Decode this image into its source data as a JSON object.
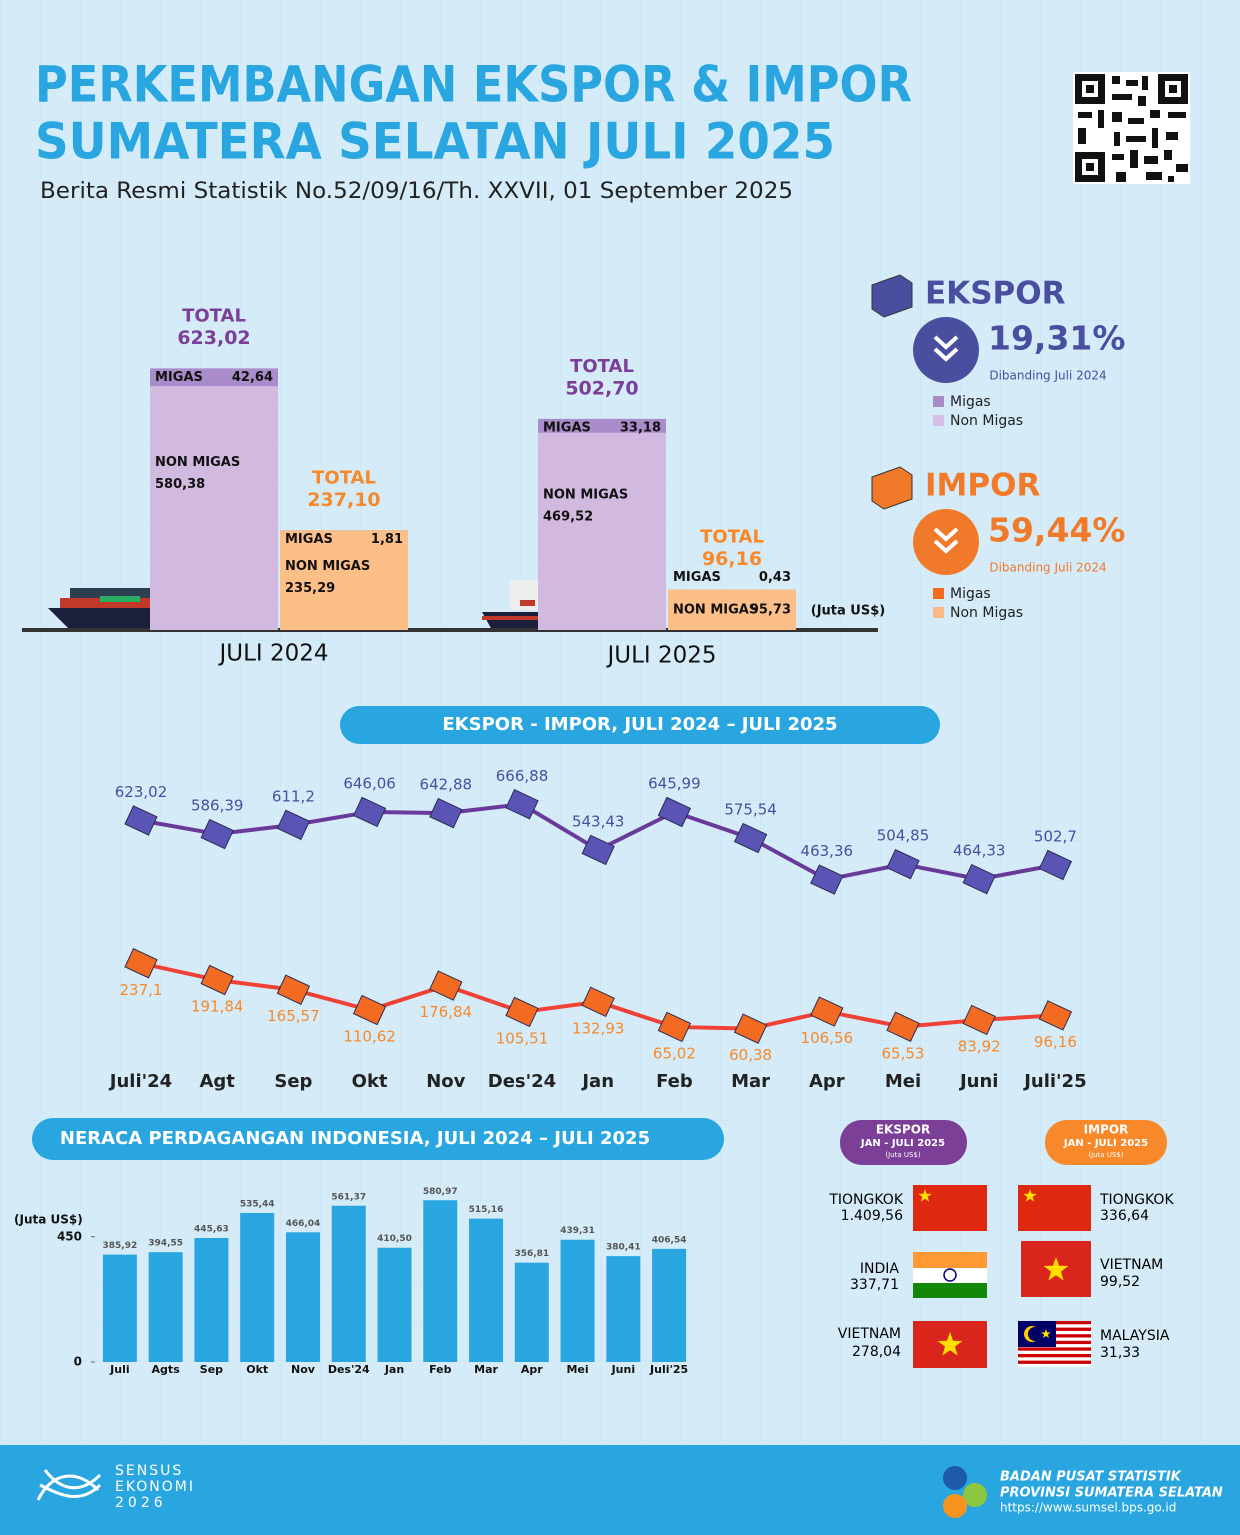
{
  "header": {
    "title": [
      "PERKEMBANGAN EKSPOR & IMPOR",
      "SUMATERA SELATAN JULI 2025"
    ],
    "subtitle": "Berita Resmi Statistik No.52/09/16/Th. XXVII, 01 September 2025"
  },
  "summary": [
    {
      "title": "EKSPOR",
      "change": "19,31%",
      "note": "Dibanding Juli 2024",
      "color": "#4a4e9e",
      "legend": [
        {
          "label": "Migas",
          "color": "#a78bc4"
        },
        {
          "label": "Non Migas",
          "color": "#d4bde6"
        }
      ]
    },
    {
      "title": "IMPOR",
      "change": "59,44%",
      "note": "Dibanding Juli 2024",
      "color": "#f07a2a",
      "legend": [
        {
          "label": "Migas",
          "color": "#f26b21"
        },
        {
          "label": "Non Migas",
          "color": "#fbb985"
        }
      ]
    }
  ],
  "chart_data": [
    {
      "type": "stacked_bar",
      "unit": "(Juta US$)",
      "categories": [
        "JULI 2024",
        "JULI 2025"
      ],
      "total_label": "TOTAL",
      "ylim": [
        0,
        700
      ],
      "groups": [
        {
          "color": "#7b3f98",
          "totals": [
            623.02,
            502.7
          ],
          "total_labels": [
            "623,02",
            "502,70"
          ],
          "series": [
            {
              "name": "MIGAS",
              "color": "#a98cc9",
              "values": [
                42.64,
                33.18
              ],
              "value_labels": [
                "42,64",
                "33,18"
              ]
            },
            {
              "name": "NON MIGAS",
              "color": "#d2b9e0",
              "values": [
                580.38,
                469.52
              ],
              "value_labels": [
                "580,38",
                "469,52"
              ]
            }
          ]
        },
        {
          "color": "#f7892a",
          "totals": [
            237.1,
            96.16
          ],
          "total_labels": [
            "237,10",
            "96,16"
          ],
          "series": [
            {
              "name": "MIGAS",
              "color": "#f9a461",
              "values": [
                1.81,
                0.43
              ],
              "value_labels": [
                "1,81",
                "0,43"
              ]
            },
            {
              "name": "NON MIGAS",
              "color": "#fdbf88",
              "values": [
                235.29,
                95.73
              ],
              "value_labels": [
                "235,29",
                "95,73"
              ]
            }
          ]
        }
      ]
    },
    {
      "type": "line",
      "title": "EKSPOR - IMPOR, JULI 2024 – JULI 2025",
      "categories": [
        "Juli'24",
        "Agt",
        "Sep",
        "Okt",
        "Nov",
        "Des'24",
        "Jan",
        "Feb",
        "Mar",
        "Apr",
        "Mei",
        "Juni",
        "Juli'25"
      ],
      "ylim": [
        0,
        700
      ],
      "series": [
        {
          "color": "#6a3a9a",
          "marker_color": "#5a55b4",
          "label_color": "#4a4e9e",
          "label_position": "above",
          "values": [
            623.02,
            586.39,
            611.2,
            646.06,
            642.88,
            666.88,
            543.43,
            645.99,
            575.54,
            463.36,
            504.85,
            464.33,
            502.7
          ],
          "value_labels": [
            "623,02",
            "586,39",
            "611,2",
            "646,06",
            "642,88",
            "666,88",
            "543,43",
            "645,99",
            "575,54",
            "463,36",
            "504,85",
            "464,33",
            "502,7"
          ]
        },
        {
          "color": "#ef4136",
          "marker_color": "#f26b21",
          "label_color": "#f7892a",
          "label_position": "below",
          "values": [
            237.1,
            191.84,
            165.57,
            110.62,
            176.84,
            105.51,
            132.93,
            65.02,
            60.38,
            106.56,
            65.53,
            83.92,
            96.16
          ],
          "value_labels": [
            "237,1",
            "191,84",
            "165,57",
            "110,62",
            "176,84",
            "105,51",
            "132,93",
            "65,02",
            "60,38",
            "106,56",
            "65,53",
            "83,92",
            "96,16"
          ]
        }
      ]
    },
    {
      "type": "bar",
      "title": "NERACA PERDAGANGAN INDONESIA, JULI 2024 – JULI 2025",
      "y_label": "(Juta US$)",
      "categories": [
        "Juli",
        "Agts",
        "Sep",
        "Okt",
        "Nov",
        "Des'24",
        "Jan",
        "Feb",
        "Mar",
        "Apr",
        "Mei",
        "Juni",
        "Juli'25"
      ],
      "values": [
        385.92,
        394.55,
        445.63,
        535.44,
        466.04,
        561.37,
        410.5,
        580.97,
        515.16,
        356.81,
        439.31,
        380.41,
        406.54
      ],
      "value_labels": [
        "385,92",
        "394,55",
        "445,63",
        "535,44",
        "466,04",
        "561,37",
        "410,50",
        "580,97",
        "515,16",
        "356,81",
        "439,31",
        "380,41",
        "406,54"
      ],
      "color": "#29a6e0",
      "ylim": [
        0,
        600
      ],
      "yticks": [
        0,
        450
      ]
    }
  ],
  "partners": [
    {
      "title": "EKSPOR",
      "period": "JAN - JULI 2025",
      "unit": "(Juta US$)",
      "items": [
        {
          "country": "TIONGKOK",
          "value": "1.409,56"
        },
        {
          "country": "INDIA",
          "value": "337,71"
        },
        {
          "country": "VIETNAM",
          "value": "278,04"
        }
      ]
    },
    {
      "title": "IMPOR",
      "period": "JAN - JULI 2025",
      "unit": "(Juta US$)",
      "items": [
        {
          "country": "TIONGKOK",
          "value": "336,64"
        },
        {
          "country": "VIETNAM",
          "value": "99,52"
        },
        {
          "country": "MALAYSIA",
          "value": "31,33"
        }
      ]
    }
  ],
  "footer": {
    "sensus": [
      "SENSUS",
      "EKONOMI",
      "2026"
    ],
    "agency": [
      "BADAN PUSAT STATISTIK",
      "PROVINSI SUMATERA SELATAN"
    ],
    "url": "https://www.sumsel.bps.go.id"
  }
}
